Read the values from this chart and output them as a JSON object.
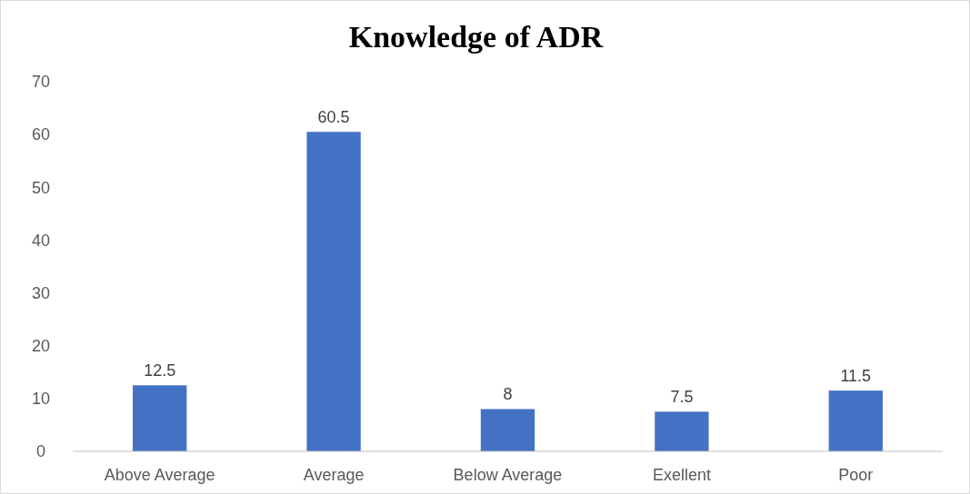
{
  "chart_data": {
    "type": "bar",
    "title": "Knowledge of ADR",
    "categories": [
      "Above Average",
      "Average",
      "Below Average",
      "Exellent",
      "Poor"
    ],
    "values": [
      12.5,
      60.5,
      8,
      7.5,
      11.5
    ],
    "color": "#4472c4",
    "ylim": [
      0,
      70
    ],
    "yticks": [
      0,
      10,
      20,
      30,
      40,
      50,
      60,
      70
    ],
    "grid": false,
    "data_labels": true
  }
}
